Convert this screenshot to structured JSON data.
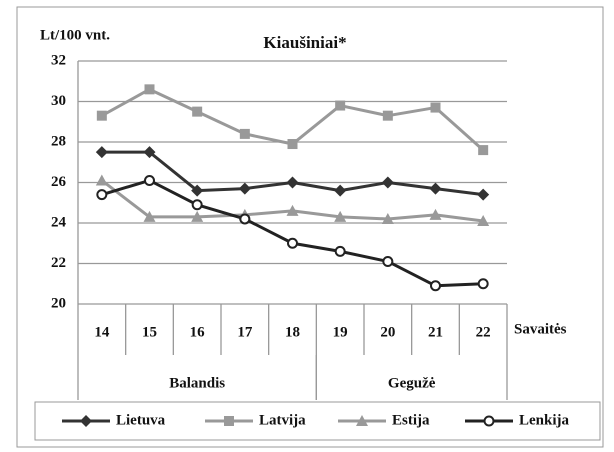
{
  "chart_data": {
    "type": "line",
    "title": "Kiaušiniai*",
    "y_label": "Lt/100 vnt.",
    "x_label": "Savaitės",
    "categories": [
      "14",
      "15",
      "16",
      "17",
      "18",
      "19",
      "20",
      "21",
      "22"
    ],
    "groups": [
      {
        "label": "Balandis",
        "count": 5
      },
      {
        "label": "Gegužė",
        "count": 4
      }
    ],
    "series": [
      {
        "name": "Lietuva",
        "color": "#333333",
        "marker": "diamond",
        "values": [
          27.5,
          27.5,
          25.6,
          25.7,
          26.0,
          25.6,
          26.0,
          25.7,
          25.4
        ]
      },
      {
        "name": "Latvija",
        "color": "#999999",
        "marker": "square",
        "values": [
          29.3,
          30.6,
          29.5,
          28.4,
          27.9,
          29.8,
          29.3,
          29.7,
          27.6
        ]
      },
      {
        "name": "Estija",
        "color": "#999999",
        "marker": "triangle",
        "values": [
          26.1,
          24.3,
          24.3,
          24.4,
          24.6,
          24.3,
          24.2,
          24.4,
          24.1
        ]
      },
      {
        "name": "Lenkija",
        "color": "#222222",
        "marker": "circle",
        "values": [
          25.4,
          26.1,
          24.9,
          24.2,
          23.0,
          22.6,
          22.1,
          20.9,
          21.0
        ]
      }
    ],
    "ylim": [
      20,
      32
    ],
    "yticks": [
      20,
      22,
      24,
      26,
      28,
      30,
      32
    ],
    "grid": true,
    "legend": "bottom"
  }
}
